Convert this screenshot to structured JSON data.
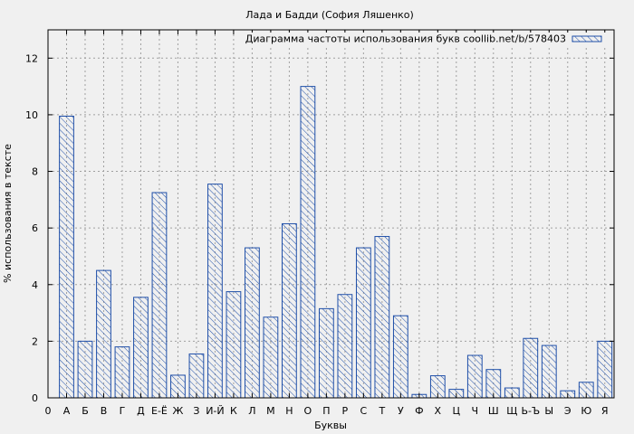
{
  "chart_data": {
    "type": "bar",
    "title": "Лада и Бадди (София Ляшенко)",
    "xlabel": "Буквы",
    "ylabel": "% использования в тексте",
    "legend": {
      "label": "Диаграмма частоты использования букв coollib.net/b/578403",
      "placement": "top-right"
    },
    "ylim": [
      0,
      13
    ],
    "yticks": [
      0,
      2,
      4,
      6,
      8,
      10,
      12
    ],
    "x_origin_label": "0",
    "grid": true,
    "colors": {
      "bar_stroke": "#1f4fa8",
      "hatch": "#1f4fa8",
      "plot_bg": "#f0f0f0",
      "grid": "#a0a0a0"
    },
    "categories": [
      "А",
      "Б",
      "В",
      "Г",
      "Д",
      "Е-Ё",
      "Ж",
      "З",
      "И-Й",
      "К",
      "Л",
      "М",
      "Н",
      "О",
      "П",
      "Р",
      "С",
      "Т",
      "У",
      "Ф",
      "Х",
      "Ц",
      "Ч",
      "Ш",
      "Щ",
      "Ь-Ъ",
      "Ы",
      "Э",
      "Ю",
      "Я"
    ],
    "values": [
      9.95,
      2.0,
      4.5,
      1.8,
      3.55,
      7.25,
      0.8,
      1.55,
      7.55,
      3.75,
      5.3,
      2.85,
      6.15,
      11.0,
      3.15,
      3.65,
      5.3,
      5.7,
      2.9,
      0.12,
      0.78,
      0.3,
      1.5,
      1.0,
      0.35,
      2.1,
      1.85,
      0.25,
      0.55,
      2.0
    ]
  }
}
